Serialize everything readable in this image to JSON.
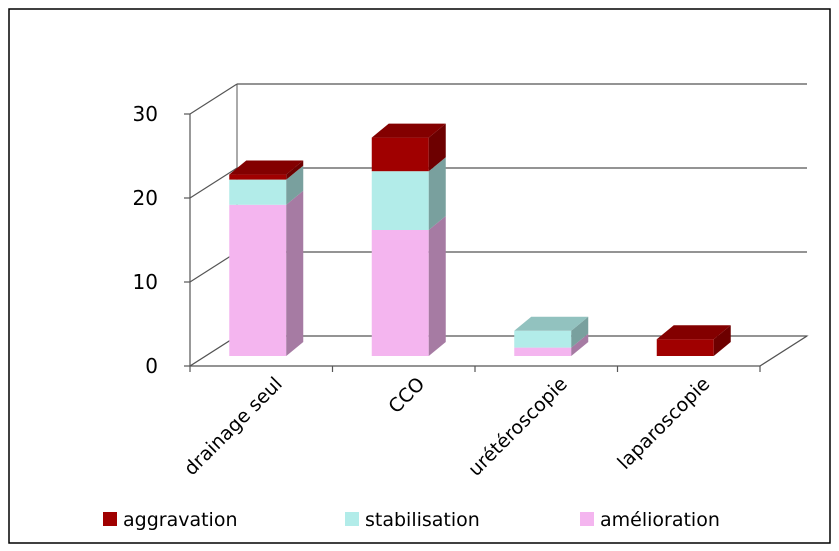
{
  "chart_data": {
    "type": "bar",
    "stacked": true,
    "three_d": true,
    "title": "",
    "xlabel": "",
    "ylabel": "",
    "categories": [
      "drainage seul",
      "CCO",
      "urétéroscopie",
      "laparoscopie"
    ],
    "series": [
      {
        "name": "amélioration",
        "color": "#f4b5ef",
        "values": [
          18,
          15,
          1,
          0
        ]
      },
      {
        "name": "stabilisation",
        "color": "#b2ece9",
        "values": [
          3,
          7,
          2,
          0
        ]
      },
      {
        "name": "aggravation",
        "color": "#a00000",
        "values": [
          0.6,
          4,
          0,
          2
        ]
      }
    ],
    "ylim": [
      0,
      30
    ],
    "yticks": [
      "0",
      "10",
      "20",
      "30"
    ],
    "grid": true,
    "legend_position": "bottom",
    "legend_order": [
      "aggravation",
      "stabilisation",
      "amélioration"
    ]
  }
}
